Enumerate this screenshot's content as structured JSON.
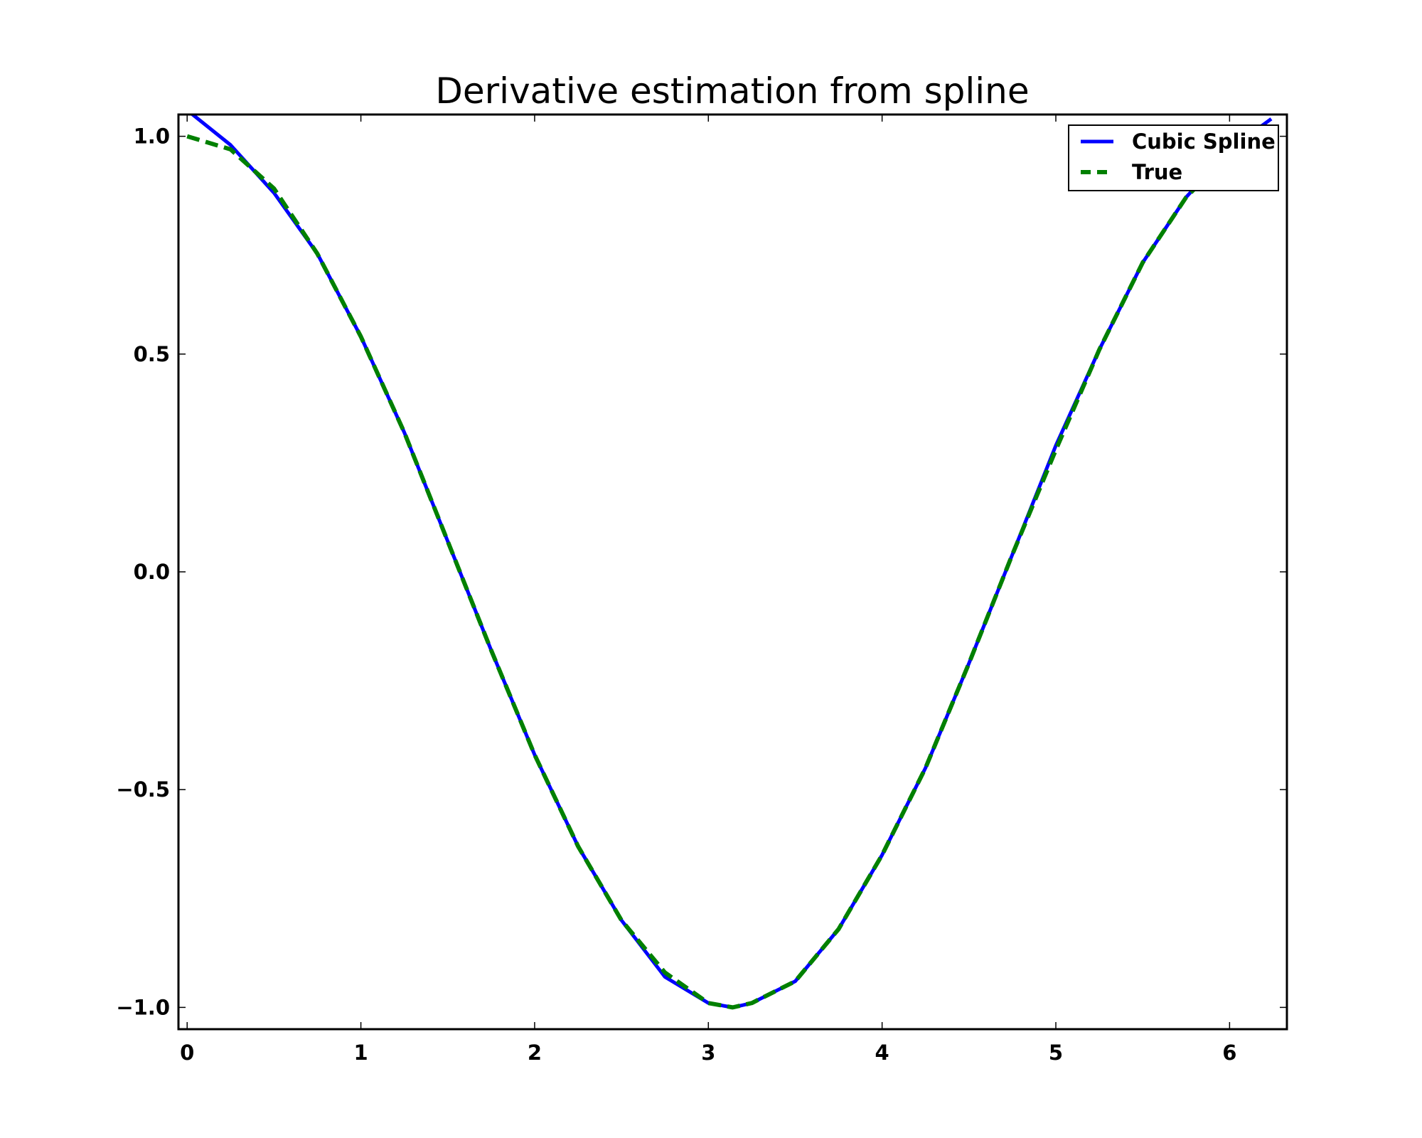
{
  "chart_data": {
    "type": "line",
    "title": "Derivative estimation from spline",
    "xlabel": "",
    "ylabel": "",
    "xlim": [
      -0.05,
      6.33
    ],
    "ylim": [
      -1.05,
      1.05
    ],
    "x_ticks": [
      0,
      1,
      2,
      3,
      4,
      5,
      6
    ],
    "x_tick_labels": [
      "0",
      "1",
      "2",
      "3",
      "4",
      "5",
      "6"
    ],
    "y_ticks": [
      1.0,
      0.5,
      0.0,
      -0.5,
      -1.0
    ],
    "y_tick_labels": [
      "1.0",
      "0.5",
      "0.0",
      "−0.5",
      "−1.0"
    ],
    "grid": false,
    "legend_position": "top-right",
    "series": [
      {
        "name": "Cubic Spline",
        "color": "#0000ff",
        "style": "solid",
        "x": [
          0.0,
          0.25,
          0.5,
          0.75,
          1.0,
          1.25,
          1.5,
          1.75,
          2.0,
          2.25,
          2.5,
          2.75,
          3.0,
          3.14,
          3.25,
          3.5,
          3.75,
          4.0,
          4.25,
          4.5,
          4.75,
          5.0,
          5.25,
          5.5,
          5.75,
          6.0,
          6.24
        ],
        "y": [
          1.06,
          0.98,
          0.87,
          0.73,
          0.54,
          0.32,
          0.07,
          -0.18,
          -0.42,
          -0.63,
          -0.8,
          -0.93,
          -0.99,
          -1.0,
          -0.99,
          -0.94,
          -0.82,
          -0.65,
          -0.45,
          -0.21,
          0.04,
          0.29,
          0.51,
          0.71,
          0.86,
          0.97,
          1.04
        ]
      },
      {
        "name": "True",
        "color": "#008000",
        "style": "dashed",
        "x": [
          0.0,
          0.25,
          0.5,
          0.75,
          1.0,
          1.25,
          1.5,
          1.75,
          2.0,
          2.25,
          2.5,
          2.75,
          3.0,
          3.14,
          3.25,
          3.5,
          3.75,
          4.0,
          4.25,
          4.5,
          4.75,
          5.0,
          5.25,
          5.5,
          5.75,
          6.0,
          6.24
        ],
        "y": [
          1.0,
          0.97,
          0.88,
          0.73,
          0.54,
          0.32,
          0.07,
          -0.18,
          -0.42,
          -0.63,
          -0.8,
          -0.92,
          -0.99,
          -1.0,
          -0.99,
          -0.94,
          -0.82,
          -0.65,
          -0.45,
          -0.21,
          0.04,
          0.28,
          0.51,
          0.71,
          0.86,
          0.96,
          1.0
        ]
      }
    ]
  }
}
